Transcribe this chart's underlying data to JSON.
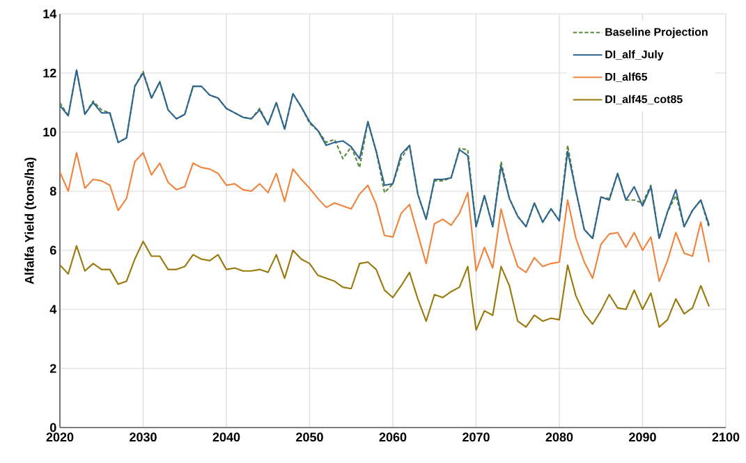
{
  "chart_data": {
    "type": "line",
    "ylabel": "Alfalfa Yield (tons/ha)",
    "x": [
      2020,
      2021,
      2022,
      2023,
      2024,
      2025,
      2026,
      2027,
      2028,
      2029,
      2030,
      2031,
      2032,
      2033,
      2034,
      2035,
      2036,
      2037,
      2038,
      2039,
      2040,
      2041,
      2042,
      2043,
      2044,
      2045,
      2046,
      2047,
      2048,
      2049,
      2050,
      2051,
      2052,
      2053,
      2054,
      2055,
      2056,
      2057,
      2058,
      2059,
      2060,
      2061,
      2062,
      2063,
      2064,
      2065,
      2066,
      2067,
      2068,
      2069,
      2070,
      2071,
      2072,
      2073,
      2074,
      2075,
      2076,
      2077,
      2078,
      2079,
      2080,
      2081,
      2082,
      2083,
      2084,
      2085,
      2086,
      2087,
      2088,
      2089,
      2090,
      2091,
      2092,
      2093,
      2094,
      2095,
      2096,
      2097,
      2098
    ],
    "series": [
      {
        "name": "Baseline Projection",
        "color": "#5a8a3a",
        "line_style": "dashed",
        "values": [
          11.0,
          10.55,
          12.1,
          10.6,
          11.05,
          10.75,
          10.65,
          9.65,
          9.8,
          11.55,
          12.05,
          11.15,
          11.7,
          10.75,
          10.45,
          10.6,
          11.55,
          11.55,
          11.25,
          11.15,
          10.8,
          10.65,
          10.5,
          10.45,
          10.8,
          10.25,
          11.0,
          10.1,
          11.3,
          10.85,
          10.3,
          10.05,
          9.65,
          9.75,
          9.1,
          9.5,
          8.8,
          10.35,
          9.35,
          7.95,
          8.25,
          9.1,
          9.55,
          7.9,
          7.05,
          8.35,
          8.35,
          8.45,
          9.45,
          9.4,
          6.8,
          7.85,
          6.8,
          9.0,
          7.75,
          7.15,
          6.8,
          7.6,
          6.95,
          7.4,
          7.0,
          9.55,
          8.0,
          6.7,
          6.4,
          7.8,
          7.75,
          8.6,
          7.7,
          7.7,
          7.6,
          8.2,
          6.4,
          7.3,
          7.85,
          6.8,
          7.35,
          7.7,
          6.75
        ]
      },
      {
        "name": "DI_alf_July",
        "color": "#2e6591",
        "values": [
          10.9,
          10.55,
          12.1,
          10.6,
          11.0,
          10.65,
          10.65,
          9.65,
          9.8,
          11.55,
          12.0,
          11.15,
          11.7,
          10.75,
          10.45,
          10.6,
          11.55,
          11.55,
          11.25,
          11.15,
          10.8,
          10.65,
          10.5,
          10.45,
          10.75,
          10.25,
          11.0,
          10.1,
          11.3,
          10.85,
          10.35,
          10.05,
          9.55,
          9.65,
          9.7,
          9.5,
          9.1,
          10.35,
          9.35,
          8.2,
          8.25,
          9.25,
          9.55,
          7.9,
          7.05,
          8.4,
          8.4,
          8.45,
          9.4,
          9.2,
          6.8,
          7.85,
          6.8,
          8.85,
          7.75,
          7.15,
          6.8,
          7.6,
          6.95,
          7.4,
          7.0,
          9.35,
          8.0,
          6.7,
          6.4,
          7.8,
          7.7,
          8.6,
          7.7,
          8.15,
          7.5,
          8.15,
          6.4,
          7.3,
          8.05,
          6.8,
          7.35,
          7.7,
          6.85
        ]
      },
      {
        "name": "DI_alf65",
        "color": "#f0843c",
        "values": [
          8.65,
          8.0,
          9.3,
          8.1,
          8.4,
          8.35,
          8.2,
          7.35,
          7.75,
          9.0,
          9.3,
          8.55,
          8.95,
          8.3,
          8.05,
          8.15,
          8.95,
          8.8,
          8.75,
          8.6,
          8.2,
          8.25,
          8.05,
          8.0,
          8.25,
          7.95,
          8.6,
          7.65,
          8.75,
          8.4,
          8.1,
          7.75,
          7.45,
          7.6,
          7.5,
          7.4,
          7.9,
          8.2,
          7.55,
          6.5,
          6.45,
          7.25,
          7.55,
          6.55,
          5.55,
          6.9,
          7.05,
          6.85,
          7.25,
          7.95,
          5.3,
          6.1,
          5.4,
          7.4,
          6.3,
          5.45,
          5.25,
          5.75,
          5.45,
          5.55,
          5.6,
          7.7,
          6.4,
          5.6,
          5.05,
          6.2,
          6.55,
          6.6,
          6.1,
          6.6,
          6.0,
          6.45,
          4.95,
          5.65,
          6.6,
          5.9,
          5.8,
          6.95,
          5.6
        ]
      },
      {
        "name": "DI_alf45_cot85",
        "color": "#987a0e",
        "values": [
          5.5,
          5.2,
          6.15,
          5.3,
          5.55,
          5.35,
          5.35,
          4.85,
          4.95,
          5.7,
          6.3,
          5.8,
          5.8,
          5.35,
          5.35,
          5.45,
          5.85,
          5.7,
          5.65,
          5.85,
          5.35,
          5.4,
          5.3,
          5.3,
          5.35,
          5.25,
          5.85,
          5.05,
          6.0,
          5.7,
          5.55,
          5.15,
          5.05,
          4.95,
          4.75,
          4.7,
          5.55,
          5.6,
          5.35,
          4.65,
          4.4,
          4.8,
          5.25,
          4.35,
          3.6,
          4.5,
          4.4,
          4.6,
          4.75,
          5.45,
          3.3,
          3.95,
          3.8,
          5.45,
          4.8,
          3.6,
          3.4,
          3.8,
          3.6,
          3.7,
          3.65,
          5.5,
          4.45,
          3.85,
          3.5,
          3.95,
          4.5,
          4.05,
          4.0,
          4.65,
          4.0,
          4.55,
          3.4,
          3.65,
          4.35,
          3.85,
          4.05,
          4.8,
          4.1
        ]
      }
    ],
    "xlim": [
      2020,
      2100
    ],
    "ylim": [
      0,
      14
    ],
    "xticks": [
      2020,
      2030,
      2040,
      2050,
      2060,
      2070,
      2080,
      2090,
      2100
    ],
    "yticks": [
      0,
      2,
      4,
      6,
      8,
      10,
      12,
      14
    ],
    "grid": true,
    "legend": "top right"
  }
}
